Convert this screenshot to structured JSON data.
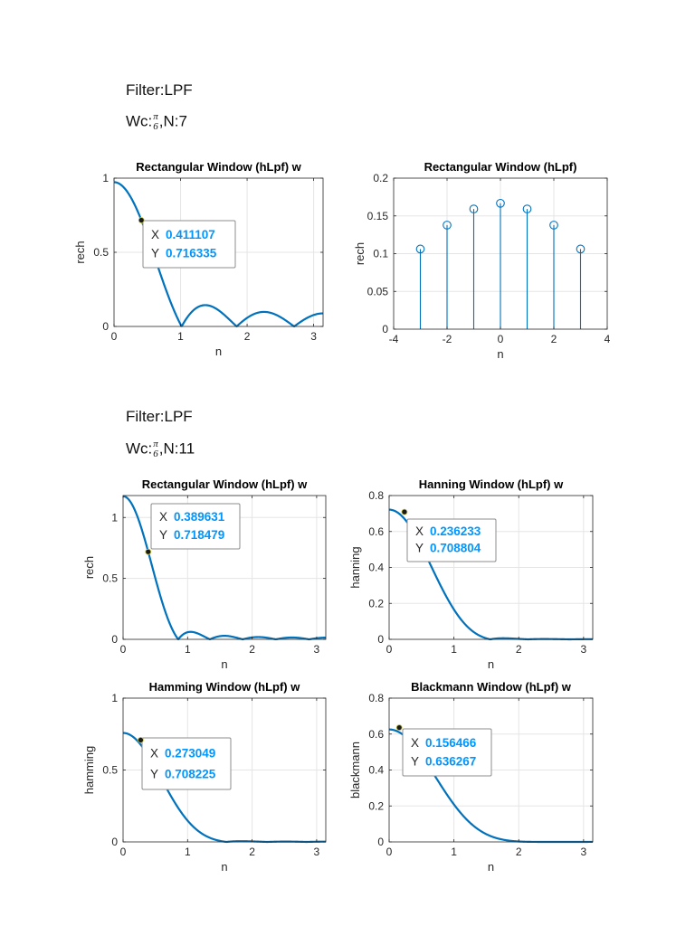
{
  "section1": {
    "filter_label": "Filter:LPF",
    "wc_prefix": "Wc:",
    "wc_num": "π",
    "wc_den": "6",
    "wc_suffix": ",N:7"
  },
  "section2": {
    "filter_label": "Filter:LPF",
    "wc_prefix": "Wc:",
    "wc_num": "π",
    "wc_den": "6",
    "wc_suffix": ",N:11"
  },
  "colors": {
    "line": "#0072BD",
    "tip_value": "#0096FF",
    "grid": "#E5E5E5"
  },
  "chart_data": [
    {
      "id": "rect7",
      "type": "line",
      "curve": "rect",
      "N": 7,
      "title": "Rectangular Window (hLpf) w",
      "xlabel": "n",
      "ylabel": "rech",
      "xlim": [
        0,
        3.14159
      ],
      "ylim": [
        0,
        1
      ],
      "xticks": [
        0,
        1,
        2,
        3
      ],
      "xticklabels": [
        "0",
        "1",
        "2",
        "3"
      ],
      "yticks": [
        0,
        0.5,
        1
      ],
      "yticklabels": [
        "0",
        "0.5",
        "1"
      ],
      "datatip": {
        "x": 0.411107,
        "y": 0.716335,
        "x_label": "X",
        "y_label": "Y",
        "x_text": "0.411107",
        "y_text": "0.716335"
      }
    },
    {
      "id": "stem7",
      "type": "stem",
      "title": "Rectangular Window (hLpf)",
      "xlabel": "n",
      "ylabel": "rech",
      "xlim": [
        -4,
        4
      ],
      "ylim": [
        0,
        0.2
      ],
      "xticks": [
        -4,
        -2,
        0,
        2,
        4
      ],
      "xticklabels": [
        "-4",
        "-2",
        "0",
        "2",
        "4"
      ],
      "yticks": [
        0,
        0.05,
        0.1,
        0.15,
        0.2
      ],
      "yticklabels": [
        "0",
        "0.05",
        "0.1",
        "0.15",
        "0.2"
      ],
      "x": [
        -3,
        -2,
        -1,
        0,
        1,
        2,
        3
      ],
      "y": [
        0.1061,
        0.1378,
        0.1592,
        0.1667,
        0.1592,
        0.1378,
        0.1061
      ]
    },
    {
      "id": "rect11",
      "type": "line",
      "curve": "rect",
      "N": 11,
      "title": "Rectangular Window (hLpf) w",
      "xlabel": "n",
      "ylabel": "rech",
      "xlim": [
        0,
        3.14159
      ],
      "ylim": [
        0,
        1.18
      ],
      "xticks": [
        0,
        1,
        2,
        3
      ],
      "xticklabels": [
        "0",
        "1",
        "2",
        "3"
      ],
      "yticks": [
        0,
        0.5,
        1
      ],
      "yticklabels": [
        "0",
        "0.5",
        "1"
      ],
      "datatip": {
        "x": 0.389631,
        "y": 0.718479,
        "x_label": "X",
        "y_label": "Y",
        "x_text": "0.389631",
        "y_text": "0.718479"
      }
    },
    {
      "id": "hann11",
      "type": "line",
      "curve": "hann",
      "N": 11,
      "title": "Hanning Window (hLpf) w",
      "xlabel": "n",
      "ylabel": "hanning",
      "xlim": [
        0,
        3.14159
      ],
      "ylim": [
        0,
        0.8
      ],
      "xticks": [
        0,
        1,
        2,
        3
      ],
      "xticklabels": [
        "0",
        "1",
        "2",
        "3"
      ],
      "yticks": [
        0,
        0.2,
        0.4,
        0.6,
        0.8
      ],
      "yticklabels": [
        "0",
        "0.2",
        "0.4",
        "0.6",
        "0.8"
      ],
      "datatip": {
        "x": 0.236233,
        "y": 0.708804,
        "x_label": "X",
        "y_label": "Y",
        "x_text": "0.236233",
        "y_text": "0.708804"
      }
    },
    {
      "id": "hamm11",
      "type": "line",
      "curve": "hamm",
      "N": 11,
      "title": "Hamming Window (hLpf) w",
      "xlabel": "n",
      "ylabel": "hamming",
      "xlim": [
        0,
        3.14159
      ],
      "ylim": [
        0,
        1
      ],
      "xticks": [
        0,
        1,
        2,
        3
      ],
      "xticklabels": [
        "0",
        "1",
        "2",
        "3"
      ],
      "yticks": [
        0,
        0.5,
        1
      ],
      "yticklabels": [
        "0",
        "0.5",
        "1"
      ],
      "datatip": {
        "x": 0.273049,
        "y": 0.708225,
        "x_label": "X",
        "y_label": "Y",
        "x_text": "0.273049",
        "y_text": "0.708225"
      }
    },
    {
      "id": "black11",
      "type": "line",
      "curve": "black",
      "N": 11,
      "title": "Blackmann Window (hLpf) w",
      "xlabel": "n",
      "ylabel": "blackmann",
      "xlim": [
        0,
        3.14159
      ],
      "ylim": [
        0,
        0.8
      ],
      "xticks": [
        0,
        1,
        2,
        3
      ],
      "xticklabels": [
        "0",
        "1",
        "2",
        "3"
      ],
      "yticks": [
        0,
        0.2,
        0.4,
        0.6,
        0.8
      ],
      "yticklabels": [
        "0",
        "0.2",
        "0.4",
        "0.6",
        "0.8"
      ],
      "datatip": {
        "x": 0.156466,
        "y": 0.636267,
        "x_label": "X",
        "y_label": "Y",
        "x_text": "0.156466",
        "y_text": "0.636267"
      }
    }
  ]
}
